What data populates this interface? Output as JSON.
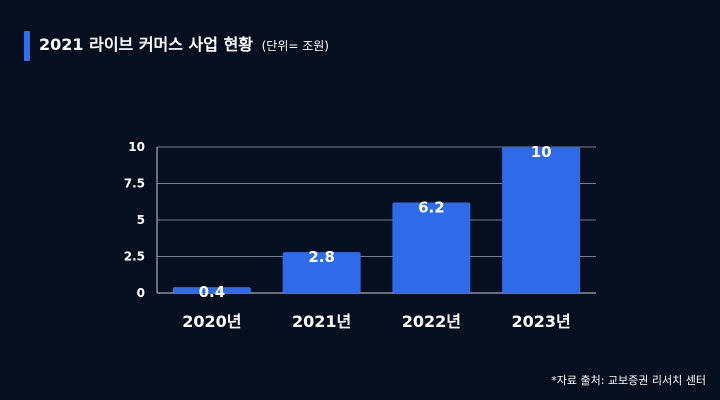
{
  "header": {
    "title": "2021 라이브 커머스 사업 현황",
    "unit_note": "(단위= 조원)",
    "accent_color": "#2f6fe9"
  },
  "footer": {
    "source": "*자료 출처: 교보증권 리서치 센터"
  },
  "chart_data": {
    "type": "bar",
    "title": "2021 라이브 커머스 사업 현황",
    "subtitle": "(단위= 조원)",
    "xlabel": "",
    "ylabel": "",
    "categories": [
      "2020년",
      "2021년",
      "2022년",
      "2023년"
    ],
    "values": [
      0.4,
      2.8,
      6.2,
      10
    ],
    "data_labels": [
      "0.4",
      "2.8",
      "6.2",
      "10"
    ],
    "yticks": [
      0,
      2.5,
      5,
      7.5,
      10
    ],
    "ytick_labels": [
      "0",
      "2.5",
      "5",
      "7.5",
      "10"
    ],
    "ylim": [
      0,
      10
    ],
    "grid": true,
    "bar_color": "#2f6ae8",
    "background": "#060f1f"
  }
}
